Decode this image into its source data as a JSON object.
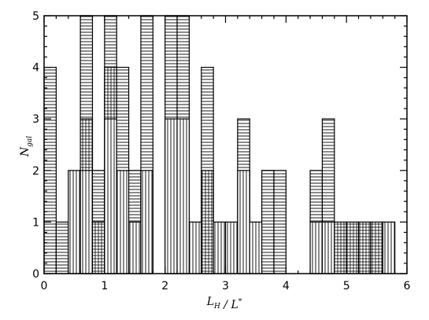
{
  "chart_data": {
    "type": "bar",
    "subtype": "overlaid step histograms with hatch fills",
    "xlabel": "L_H / L*",
    "ylabel": "N_gal",
    "xlim": [
      0,
      6
    ],
    "ylim": [
      0,
      5
    ],
    "xticks": [
      "0",
      "1",
      "2",
      "3",
      "4",
      "5",
      "6"
    ],
    "yticks": [
      "0",
      "1",
      "2",
      "3",
      "4",
      "5"
    ],
    "bin_width": 0.2,
    "grid": false,
    "legend": "none",
    "colors": {
      "ink": "#000000",
      "background": "#ffffff"
    },
    "x_bins": [
      0.0,
      0.2,
      0.4,
      0.6,
      0.8,
      1.0,
      1.2,
      1.4,
      1.6,
      1.8,
      2.0,
      2.2,
      2.4,
      2.6,
      2.8,
      3.0,
      3.2,
      3.4,
      3.6,
      3.8,
      4.0,
      4.2,
      4.4,
      4.6,
      4.8,
      5.0,
      5.2,
      5.4,
      5.6
    ],
    "series": [
      {
        "hatch": "vertical lines",
        "values": [
          0,
          0,
          2,
          2,
          0,
          3,
          2,
          1,
          2,
          0,
          3,
          3,
          1,
          0,
          1,
          1,
          2,
          1,
          0,
          0,
          0,
          0,
          1,
          1,
          0,
          0,
          0,
          0,
          1
        ]
      },
      {
        "hatch": "cross-hatch",
        "values": [
          0,
          0,
          0,
          3,
          1,
          4,
          0,
          0,
          0,
          0,
          0,
          0,
          0,
          2,
          0,
          0,
          0,
          0,
          2,
          0,
          0,
          0,
          0,
          0,
          1,
          1,
          1,
          1,
          0
        ]
      },
      {
        "hatch": "horizontal lines",
        "values": [
          4,
          1,
          0,
          5,
          2,
          5,
          4,
          2,
          5,
          0,
          5,
          5,
          0,
          4,
          0,
          0,
          3,
          0,
          2,
          2,
          0,
          0,
          2,
          3,
          0,
          0,
          0,
          0,
          0
        ]
      }
    ]
  }
}
